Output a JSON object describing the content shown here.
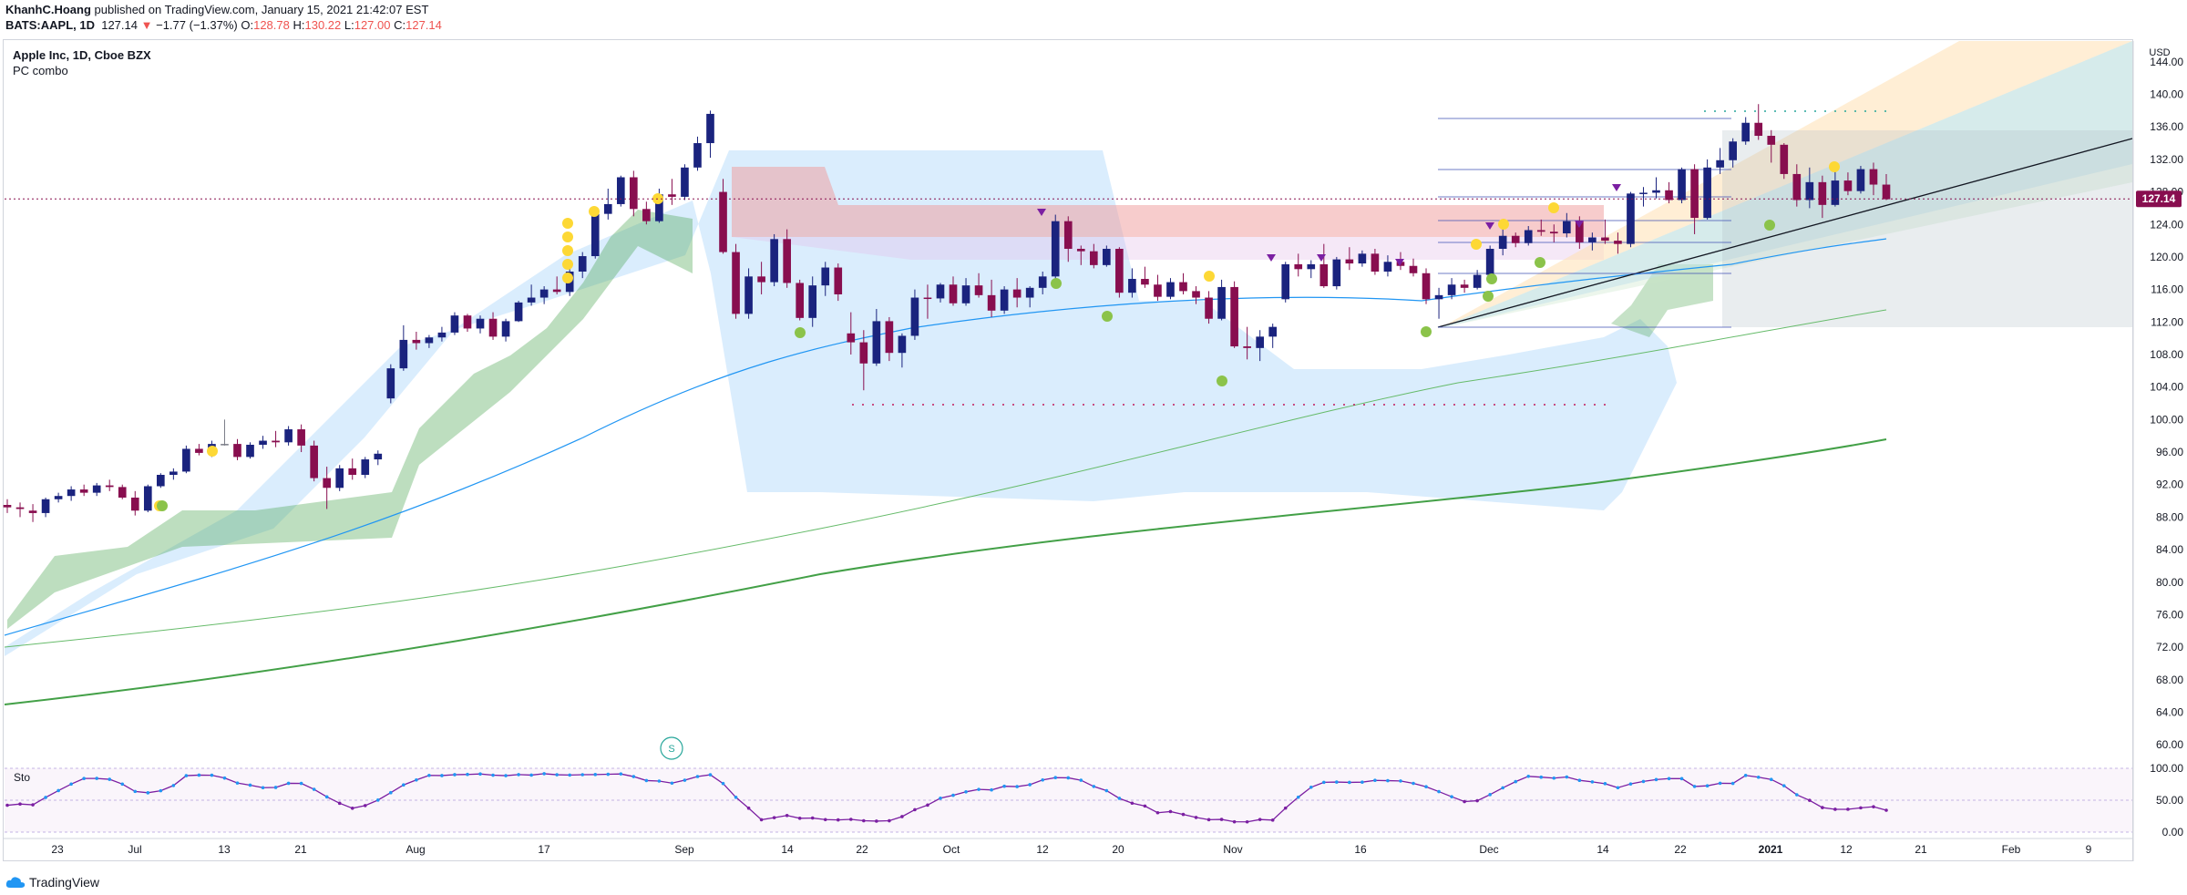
{
  "header": {
    "publisher_line_user": "KhanhC.Hoang",
    "publisher_line_rest": " published on TradingView.com, January 15, 2021 21:42:07 EST",
    "symbol": "BATS:AAPL, 1D",
    "last": "127.14",
    "arrow": "▼",
    "change": "−1.77 (−1.37%)",
    "o_label": "O:",
    "o": "128.78",
    "h_label": "H:",
    "h": "130.22",
    "l_label": "L:",
    "l": "127.00",
    "c_label": "C:",
    "c": "127.14"
  },
  "legend": {
    "title": "Apple Inc, 1D, Cboe BZX",
    "indicator": "PC combo"
  },
  "stoch_label": "Sto",
  "marker_label": "S",
  "footer": {
    "brand": "TradingView"
  },
  "colors": {
    "up": "#1a237e",
    "down": "#880e4f",
    "neutral": "#787b86",
    "cloud": "#bbdefb",
    "supertrend": "#43a047",
    "resistance": "#ef9a9a",
    "ema": "#2196f3",
    "sma200": "#43a047",
    "price_tag": "#880e4f"
  },
  "chart_data": {
    "type": "candlestick",
    "currency": "USD",
    "y_ticks": [
      "144.00",
      "140.00",
      "136.00",
      "132.00",
      "128.00",
      "124.00",
      "120.00",
      "116.00",
      "112.00",
      "108.00",
      "104.00",
      "100.00",
      "96.00",
      "92.00",
      "88.00",
      "84.00",
      "80.00",
      "76.00",
      "72.00",
      "68.00",
      "64.00",
      "60.00"
    ],
    "y_range": [
      58,
      146
    ],
    "last_price_label": "127.14",
    "x_ticks": [
      "23",
      "Jul",
      "13",
      "21",
      "Aug",
      "17",
      "Sep",
      "14",
      "22",
      "Oct",
      "12",
      "20",
      "Nov",
      "16",
      "Dec",
      "14",
      "22",
      "2021",
      "12",
      "21",
      "Feb",
      "9"
    ],
    "stoch_ticks": [
      "100.00",
      "50.00",
      "0.00"
    ],
    "ohlc": [
      [
        89.5,
        90.2,
        88.5,
        89.2
      ],
      [
        89.2,
        89.8,
        88.0,
        89.0
      ],
      [
        88.8,
        89.6,
        87.4,
        88.5
      ],
      [
        88.5,
        90.4,
        88.0,
        90.2
      ],
      [
        90.2,
        91.0,
        89.8,
        90.6
      ],
      [
        90.6,
        91.8,
        90.0,
        91.4
      ],
      [
        91.4,
        92.0,
        90.6,
        91.0
      ],
      [
        91.0,
        92.2,
        90.6,
        91.9
      ],
      [
        91.9,
        92.6,
        91.2,
        91.7
      ],
      [
        91.7,
        92.0,
        90.2,
        90.4
      ],
      [
        90.4,
        91.2,
        88.2,
        88.8
      ],
      [
        88.8,
        92.0,
        88.6,
        91.8
      ],
      [
        91.8,
        93.4,
        91.6,
        93.2
      ],
      [
        93.2,
        94.0,
        92.6,
        93.6
      ],
      [
        93.6,
        96.8,
        93.4,
        96.4
      ],
      [
        96.4,
        97.0,
        95.6,
        95.9
      ],
      [
        95.9,
        97.4,
        95.4,
        97.0
      ],
      [
        97.0,
        100.0,
        96.8,
        97.0
      ],
      [
        97.0,
        97.6,
        95.0,
        95.4
      ],
      [
        95.4,
        97.2,
        95.2,
        96.9
      ],
      [
        96.9,
        98.0,
        96.4,
        97.4
      ],
      [
        97.4,
        98.6,
        96.6,
        97.2
      ],
      [
        97.2,
        99.2,
        96.8,
        98.8
      ],
      [
        98.8,
        99.4,
        96.0,
        96.8
      ],
      [
        96.8,
        97.4,
        92.4,
        92.8
      ],
      [
        92.8,
        94.2,
        89.0,
        91.6
      ],
      [
        91.6,
        94.4,
        91.2,
        94.0
      ],
      [
        94.0,
        95.2,
        92.6,
        93.2
      ],
      [
        93.2,
        95.4,
        92.8,
        95.1
      ],
      [
        95.1,
        96.2,
        94.4,
        95.8
      ],
      [
        102.6,
        106.8,
        102.0,
        106.3
      ],
      [
        106.3,
        111.6,
        106.0,
        109.8
      ],
      [
        109.8,
        110.8,
        108.6,
        109.4
      ],
      [
        109.4,
        110.4,
        108.8,
        110.1
      ],
      [
        110.1,
        111.4,
        109.6,
        110.7
      ],
      [
        110.7,
        113.2,
        110.4,
        112.8
      ],
      [
        112.8,
        113.0,
        110.8,
        111.2
      ],
      [
        111.2,
        112.8,
        110.6,
        112.4
      ],
      [
        112.4,
        113.2,
        109.8,
        110.2
      ],
      [
        110.2,
        112.4,
        109.6,
        112.1
      ],
      [
        112.1,
        114.6,
        112.0,
        114.4
      ],
      [
        114.4,
        116.6,
        114.0,
        115.0
      ],
      [
        115.0,
        116.4,
        114.2,
        116.0
      ],
      [
        116.0,
        117.6,
        115.4,
        115.7
      ],
      [
        115.7,
        118.6,
        115.2,
        118.2
      ],
      [
        118.2,
        120.6,
        117.4,
        120.1
      ],
      [
        120.1,
        125.6,
        119.8,
        125.3
      ],
      [
        125.3,
        128.4,
        124.6,
        126.5
      ],
      [
        126.5,
        130.0,
        126.2,
        129.8
      ],
      [
        129.8,
        130.6,
        125.0,
        125.9
      ],
      [
        125.9,
        126.8,
        124.0,
        124.4
      ],
      [
        124.4,
        128.4,
        124.2,
        127.7
      ],
      [
        127.7,
        129.6,
        126.4,
        127.4
      ],
      [
        127.4,
        131.4,
        127.0,
        131.0
      ],
      [
        131.0,
        134.8,
        130.6,
        134.0
      ],
      [
        134.0,
        138.0,
        132.2,
        137.6
      ],
      [
        128.0,
        129.6,
        120.4,
        120.6
      ],
      [
        120.6,
        121.6,
        112.4,
        113.0
      ],
      [
        113.0,
        118.6,
        112.4,
        117.6
      ],
      [
        117.6,
        119.4,
        115.4,
        116.9
      ],
      [
        116.9,
        122.8,
        116.4,
        122.2
      ],
      [
        122.2,
        123.4,
        116.2,
        116.8
      ],
      [
        116.8,
        117.2,
        112.2,
        112.5
      ],
      [
        112.5,
        117.6,
        111.4,
        116.5
      ],
      [
        116.5,
        119.4,
        115.2,
        118.7
      ],
      [
        118.7,
        119.2,
        114.6,
        115.4
      ],
      [
        110.6,
        113.2,
        108.0,
        109.5
      ],
      [
        109.5,
        111.0,
        103.6,
        106.9
      ],
      [
        106.9,
        113.6,
        106.6,
        112.1
      ],
      [
        112.1,
        112.6,
        107.2,
        108.2
      ],
      [
        108.2,
        110.6,
        106.4,
        110.3
      ],
      [
        110.3,
        116.0,
        109.8,
        115.0
      ],
      [
        115.0,
        116.6,
        112.4,
        114.9
      ],
      [
        114.9,
        116.8,
        114.4,
        116.6
      ],
      [
        116.6,
        117.6,
        114.0,
        114.3
      ],
      [
        114.3,
        117.4,
        114.0,
        116.5
      ],
      [
        116.5,
        118.0,
        115.0,
        115.3
      ],
      [
        115.3,
        117.2,
        112.6,
        113.4
      ],
      [
        113.4,
        116.4,
        113.0,
        116.0
      ],
      [
        116.0,
        117.4,
        113.8,
        115.0
      ],
      [
        115.0,
        116.4,
        113.8,
        116.2
      ],
      [
        116.2,
        118.2,
        115.4,
        117.6
      ],
      [
        117.6,
        125.2,
        117.0,
        124.4
      ],
      [
        124.4,
        125.0,
        119.4,
        121.0
      ],
      [
        121.0,
        121.4,
        119.0,
        120.7
      ],
      [
        120.7,
        121.6,
        118.6,
        119.0
      ],
      [
        119.0,
        121.4,
        118.8,
        121.0
      ],
      [
        121.0,
        121.2,
        115.0,
        115.6
      ],
      [
        115.6,
        118.6,
        115.0,
        117.3
      ],
      [
        117.3,
        118.8,
        116.2,
        116.6
      ],
      [
        116.6,
        117.8,
        114.6,
        115.1
      ],
      [
        115.1,
        117.4,
        114.8,
        116.9
      ],
      [
        116.9,
        118.0,
        115.4,
        115.8
      ],
      [
        115.8,
        116.4,
        114.2,
        115.0
      ],
      [
        115.0,
        115.8,
        111.8,
        112.4
      ],
      [
        112.4,
        117.2,
        112.2,
        116.3
      ],
      [
        116.3,
        117.0,
        108.8,
        109.0
      ],
      [
        109.0,
        111.4,
        107.4,
        108.8
      ],
      [
        108.8,
        111.0,
        107.2,
        110.2
      ],
      [
        110.2,
        111.8,
        108.8,
        111.4
      ],
      [
        114.8,
        119.4,
        114.4,
        119.1
      ],
      [
        119.1,
        120.4,
        117.6,
        118.5
      ],
      [
        118.5,
        119.6,
        117.4,
        119.1
      ],
      [
        119.1,
        121.6,
        116.2,
        116.4
      ],
      [
        116.4,
        120.0,
        116.0,
        119.7
      ],
      [
        119.7,
        121.2,
        118.4,
        119.2
      ],
      [
        119.2,
        120.8,
        118.8,
        120.4
      ],
      [
        120.4,
        121.0,
        117.8,
        118.2
      ],
      [
        118.2,
        120.2,
        117.6,
        119.4
      ],
      [
        119.4,
        120.6,
        118.4,
        118.9
      ],
      [
        118.9,
        119.8,
        117.6,
        118.0
      ],
      [
        118.0,
        118.6,
        114.2,
        114.8
      ],
      [
        114.8,
        116.2,
        112.4,
        115.3
      ],
      [
        115.3,
        117.4,
        114.8,
        116.6
      ],
      [
        116.6,
        117.2,
        115.6,
        116.2
      ],
      [
        116.2,
        118.4,
        116.0,
        117.8
      ],
      [
        117.8,
        121.4,
        117.6,
        121.0
      ],
      [
        121.0,
        123.4,
        120.2,
        122.6
      ],
      [
        122.6,
        123.0,
        121.2,
        121.7
      ],
      [
        121.7,
        123.8,
        121.4,
        123.3
      ],
      [
        123.3,
        124.6,
        122.6,
        123.1
      ],
      [
        123.1,
        124.0,
        121.8,
        122.9
      ],
      [
        122.9,
        125.4,
        122.4,
        124.4
      ],
      [
        124.4,
        125.0,
        121.0,
        121.8
      ],
      [
        121.8,
        123.0,
        120.8,
        122.4
      ],
      [
        122.4,
        124.6,
        121.6,
        122.0
      ],
      [
        122.0,
        123.0,
        120.4,
        121.6
      ],
      [
        121.6,
        128.0,
        121.2,
        127.8
      ],
      [
        127.8,
        128.6,
        126.2,
        127.9
      ],
      [
        127.9,
        129.8,
        127.2,
        128.2
      ],
      [
        128.2,
        129.2,
        126.6,
        127.0
      ],
      [
        127.0,
        131.0,
        126.6,
        130.8
      ],
      [
        130.8,
        131.4,
        122.8,
        124.8
      ],
      [
        124.8,
        132.0,
        124.6,
        131.0
      ],
      [
        131.0,
        133.4,
        130.2,
        131.9
      ],
      [
        131.9,
        134.6,
        131.0,
        134.2
      ],
      [
        134.2,
        137.2,
        133.8,
        136.5
      ],
      [
        136.5,
        138.8,
        134.4,
        134.9
      ],
      [
        134.9,
        135.6,
        131.6,
        133.8
      ],
      [
        133.8,
        134.0,
        129.6,
        130.2
      ],
      [
        130.2,
        131.4,
        126.2,
        127.0
      ],
      [
        127.0,
        131.0,
        126.0,
        129.2
      ],
      [
        129.2,
        130.0,
        124.8,
        126.4
      ],
      [
        126.4,
        131.0,
        126.2,
        129.4
      ],
      [
        129.4,
        130.4,
        127.6,
        128.1
      ],
      [
        128.1,
        131.2,
        127.8,
        130.8
      ],
      [
        130.8,
        131.6,
        127.6,
        128.9
      ],
      [
        128.9,
        130.2,
        127.0,
        127.1
      ]
    ],
    "indicators": [
      "EMA",
      "SMA 100",
      "SMA 200",
      "Ichimoku cloud",
      "Supertrend",
      "Fibonacci channel",
      "Stochastic RSI"
    ]
  }
}
